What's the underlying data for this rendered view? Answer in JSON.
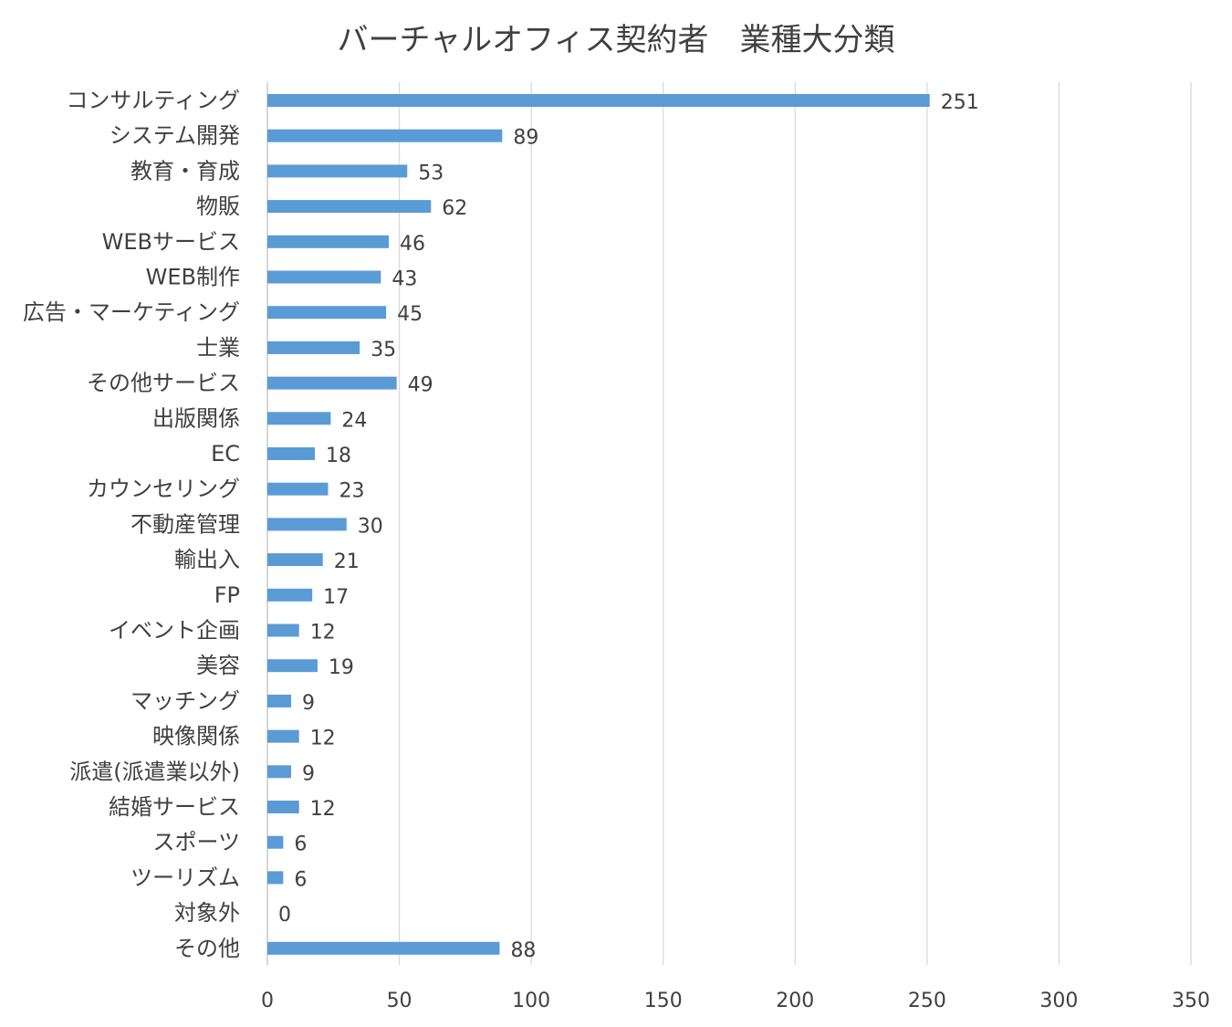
{
  "chart_data": {
    "type": "bar",
    "orientation": "horizontal",
    "title": "バーチャルオフィス契約者　業種大分類",
    "categories": [
      "コンサルティング",
      "システム開発",
      "教育・育成",
      "物販",
      "WEBサービス",
      "WEB制作",
      "広告・マーケティング",
      "士業",
      "その他サービス",
      "出版関係",
      "EC",
      "カウンセリング",
      "不動産管理",
      "輸出入",
      "FP",
      "イベント企画",
      "美容",
      "マッチング",
      "映像関係",
      "派遣(派遣業以外)",
      "結婚サービス",
      "スポーツ",
      "ツーリズム",
      "対象外",
      "その他"
    ],
    "values": [
      251,
      89,
      53,
      62,
      46,
      43,
      45,
      35,
      49,
      24,
      18,
      23,
      30,
      21,
      17,
      12,
      19,
      9,
      12,
      9,
      12,
      6,
      6,
      0,
      88
    ],
    "xlim": [
      0,
      350
    ],
    "xticks": [
      0,
      50,
      100,
      150,
      200,
      250,
      300,
      350
    ],
    "grid": "vertical",
    "data_labels": true,
    "bar_color": "#5b9bd5"
  }
}
